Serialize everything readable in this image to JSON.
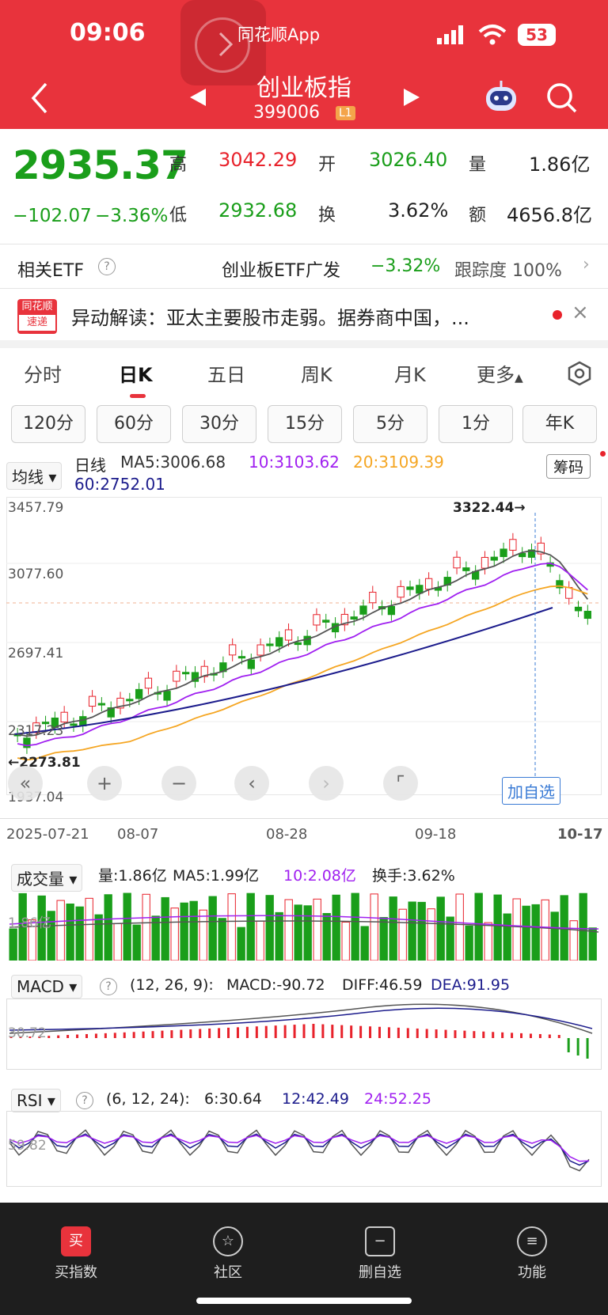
{
  "status": {
    "time": "09:06",
    "app_label": "同花顺App",
    "battery": "53"
  },
  "header": {
    "title": "创业板指",
    "code": "399006",
    "level": "L1"
  },
  "quote": {
    "price": "2935.37",
    "change": "−102.07",
    "change_pct": "−3.36%",
    "high_label": "高",
    "high": "3042.29",
    "open_label": "开",
    "open": "3026.40",
    "vol_label": "量",
    "vol": "1.86亿",
    "low_label": "低",
    "low": "2932.68",
    "turn_label": "换",
    "turn": "3.62%",
    "amt_label": "额",
    "amt": "4656.8亿"
  },
  "etf": {
    "label": "相关ETF",
    "name": "创业板ETF广发",
    "pct": "−3.32%",
    "track": "跟踪度 100%"
  },
  "news": {
    "logo_top": "同花顺",
    "logo_bottom": "速递",
    "text": "异动解读：亚太主要股市走弱。据券商中国，..."
  },
  "tabs": [
    "分时",
    "日K",
    "五日",
    "周K",
    "月K",
    "更多"
  ],
  "periods": [
    "120分",
    "60分",
    "30分",
    "15分",
    "5分",
    "1分",
    "年K"
  ],
  "kline": {
    "mode": "均线",
    "line_label": "日线",
    "ma5": "MA5:3006.68",
    "ma10": "10:3103.62",
    "ma20": "20:3109.39",
    "ma60": "60:2752.01",
    "chip_button": "筹码",
    "y_labels": [
      "3457.79",
      "3077.60",
      "2697.41",
      "2317.23",
      "1937.04"
    ],
    "max_label": "3322.44→",
    "min_label": "←2273.81",
    "dates": [
      "2025-07-21",
      "08-07",
      "08-28",
      "09-18",
      "10-17"
    ],
    "add_watch": "加自选"
  },
  "volume": {
    "label": "成交量",
    "vol": "量:1.86亿",
    "ma5": "MA5:1.99亿",
    "ma10": "10:2.08亿",
    "turn": "换手:3.62%",
    "axis": "1.86亿"
  },
  "macd": {
    "label": "MACD",
    "params": "(12, 26, 9):",
    "macd": "MACD:-90.72",
    "diff": "DIFF:46.59",
    "dea": "DEA:91.95",
    "axis": "30.72"
  },
  "rsi": {
    "label": "RSI",
    "params": "(6, 12, 24):",
    "r6": "6:30.64",
    "r12": "12:42.49",
    "r24": "24:52.25",
    "axis": "59.82"
  },
  "nav": [
    {
      "label": "买指数",
      "icon": "买"
    },
    {
      "label": "社区",
      "icon": "☆"
    },
    {
      "label": "删自选",
      "icon": "−"
    },
    {
      "label": "功能",
      "icon": "≡"
    }
  ],
  "colors": {
    "red": "#e8333c",
    "up": "#e8222b",
    "down": "#1a9e1a",
    "ma10": "#a020f0",
    "ma20": "#f5a623",
    "ma60": "#1c1c8c"
  }
}
